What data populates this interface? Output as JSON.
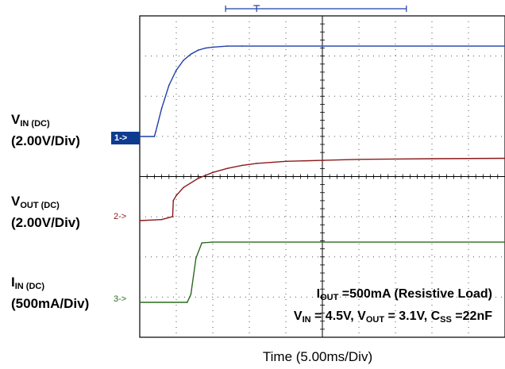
{
  "chart_data": {
    "type": "line",
    "title": "",
    "xlabel": "Time (5.00ms/Div)",
    "x_unit": "ms",
    "xlim": [
      0,
      50
    ],
    "grid": true,
    "divisions": {
      "x": 10,
      "y": 8
    },
    "channels": [
      {
        "marker": "1->",
        "name_main": "V",
        "name_sub": "IN (DC)",
        "scale": "(2.00V/Div)",
        "color": "#1f3fa8",
        "unit": "V",
        "x": [
          0,
          2,
          2.2,
          3,
          4,
          5,
          6,
          7,
          8,
          9,
          10,
          12,
          14,
          50
        ],
        "y": [
          0,
          0,
          0.25,
          1.4,
          2.55,
          3.3,
          3.8,
          4.1,
          4.3,
          4.4,
          4.45,
          4.5,
          4.5,
          4.5
        ]
      },
      {
        "marker": "2->",
        "name_main": "V",
        "name_sub": "OUT (DC)",
        "scale": "(2.00V/Div)",
        "color": "#8b1a1a",
        "unit": "V",
        "x": [
          0,
          3,
          4.5,
          4.6,
          5,
          6,
          8,
          10,
          12,
          14,
          16,
          20,
          25,
          30,
          40,
          50
        ],
        "y": [
          0,
          0.05,
          0.2,
          1.0,
          1.25,
          1.65,
          2.1,
          2.4,
          2.6,
          2.75,
          2.85,
          2.95,
          3.0,
          3.05,
          3.08,
          3.1
        ]
      },
      {
        "marker": "3->",
        "name_main": "I",
        "name_sub": "IN (DC)",
        "scale": "(500mA/Div)",
        "color": "#2a6b1f",
        "unit": "mA",
        "x": [
          0,
          6.5,
          7.0,
          7.7,
          8.5,
          10,
          50
        ],
        "y": [
          0,
          0,
          100,
          550,
          740,
          750,
          750
        ]
      }
    ],
    "annotations": [
      {
        "main": "I",
        "sub": "OUT",
        "text": " =500mA (Resistive Load)"
      },
      {
        "line": [
          "V",
          "IN",
          " = 4.5V, V",
          "OUT",
          " = 3.1V, C",
          "SS",
          " =22nF"
        ]
      }
    ]
  }
}
